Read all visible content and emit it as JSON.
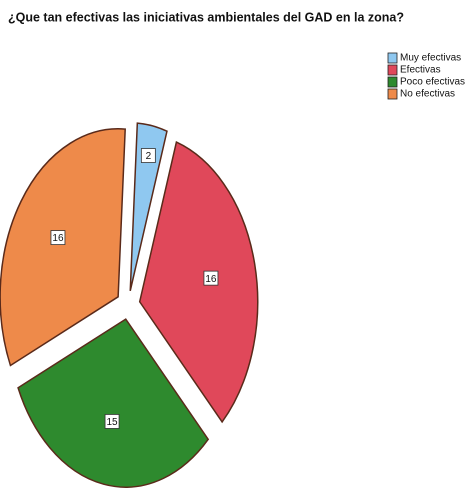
{
  "chart_data": {
    "type": "pie",
    "title": "¿Que tan efectivas las iniciativas ambientales del GAD en la zona?",
    "categories": [
      "Muy efectivas",
      "Efectivas",
      "Poco efectivas",
      "No efectivas"
    ],
    "values": [
      2,
      16,
      15,
      16
    ],
    "colors": [
      "#8fc8f0",
      "#e0485a",
      "#2e8a2e",
      "#ee8a4a"
    ],
    "legend": "upper right"
  }
}
